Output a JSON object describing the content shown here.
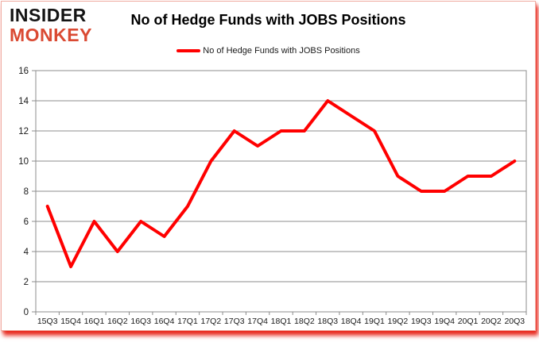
{
  "logo": {
    "line1": "INSIDER",
    "line2": "MONKEY"
  },
  "title": "No of Hedge Funds with JOBS Positions",
  "legend": {
    "label": "No of Hedge Funds with JOBS Positions"
  },
  "colors": {
    "line": "#ff0000",
    "logo_black": "#141414",
    "logo_red": "#da4a33",
    "grid": "#8c8c8c",
    "text": "#1a1a1a",
    "frame_shadow_red": "#e6180c",
    "background": "#ffffff"
  },
  "chart_data": {
    "type": "line",
    "title": "No of Hedge Funds with JOBS Positions",
    "categories": [
      "15Q3",
      "15Q4",
      "16Q1",
      "16Q2",
      "16Q3",
      "16Q4",
      "17Q1",
      "17Q2",
      "17Q3",
      "17Q4",
      "18Q1",
      "18Q2",
      "18Q3",
      "18Q4",
      "19Q1",
      "19Q2",
      "19Q3",
      "19Q4",
      "20Q1",
      "20Q2",
      "20Q3"
    ],
    "series": [
      {
        "name": "No of Hedge Funds with JOBS Positions",
        "values": [
          7,
          3,
          6,
          4,
          6,
          5,
          7,
          10,
          12,
          11,
          12,
          12,
          14,
          13,
          12,
          9,
          8,
          8,
          9,
          9,
          10
        ]
      }
    ],
    "xlabel": "",
    "ylabel": "",
    "ylim": [
      0,
      16
    ],
    "yticks": [
      0,
      2,
      4,
      6,
      8,
      10,
      12,
      14,
      16
    ],
    "grid": true,
    "legend_position": "top"
  }
}
